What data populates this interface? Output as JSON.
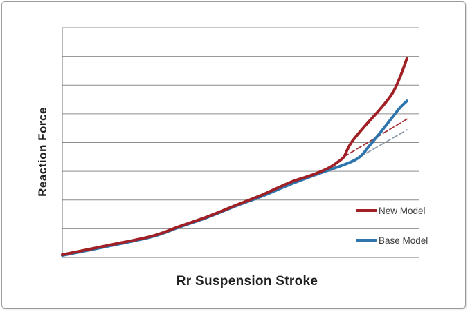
{
  "chart_data": {
    "type": "line",
    "title": "",
    "xlabel": "Rr Suspension Stroke",
    "ylabel": "Reaction Force",
    "axes": {
      "x_tick_labels": "none visible",
      "y_tick_labels": "none visible",
      "y_gridlines": 9,
      "y_gridline_intervals": 8,
      "grid": true,
      "note": "axes are unlabeled; series points given as normalized plot fractions x:0-1 left-to-right, y:0-1 bottom-to-top"
    },
    "legend": {
      "position": "inside-right",
      "entries": [
        "New Model",
        "Base Model"
      ]
    },
    "series": [
      {
        "name": "Base Model extrapolation",
        "style": "dashed",
        "color": "#8d9cac",
        "width": 1.8,
        "points": [
          [
            0.835,
            0.438
          ],
          [
            0.967,
            0.555
          ]
        ]
      },
      {
        "name": "New Model extrapolation",
        "style": "dashed",
        "color": "#a43338",
        "width": 1.8,
        "points": [
          [
            0.79,
            0.438
          ],
          [
            0.971,
            0.606
          ]
        ]
      },
      {
        "name": "Base Model",
        "style": "solid",
        "color": "#2e74ad",
        "width": 4,
        "points": [
          [
            0.0,
            0.009
          ],
          [
            0.126,
            0.048
          ],
          [
            0.252,
            0.09
          ],
          [
            0.33,
            0.133
          ],
          [
            0.408,
            0.175
          ],
          [
            0.485,
            0.223
          ],
          [
            0.563,
            0.268
          ],
          [
            0.641,
            0.319
          ],
          [
            0.718,
            0.364
          ],
          [
            0.796,
            0.407
          ],
          [
            0.835,
            0.438
          ],
          [
            0.864,
            0.491
          ],
          [
            0.893,
            0.545
          ],
          [
            0.922,
            0.602
          ],
          [
            0.947,
            0.651
          ],
          [
            0.967,
            0.681
          ]
        ]
      },
      {
        "name": "New Model",
        "style": "solid",
        "color": "#a02025",
        "width": 4,
        "points": [
          [
            0.0,
            0.012
          ],
          [
            0.126,
            0.052
          ],
          [
            0.252,
            0.093
          ],
          [
            0.33,
            0.136
          ],
          [
            0.408,
            0.178
          ],
          [
            0.485,
            0.226
          ],
          [
            0.563,
            0.274
          ],
          [
            0.641,
            0.328
          ],
          [
            0.699,
            0.358
          ],
          [
            0.748,
            0.39
          ],
          [
            0.777,
            0.42
          ],
          [
            0.79,
            0.438
          ],
          [
            0.8,
            0.47
          ],
          [
            0.812,
            0.503
          ],
          [
            0.849,
            0.572
          ],
          [
            0.893,
            0.648
          ],
          [
            0.926,
            0.714
          ],
          [
            0.947,
            0.783
          ],
          [
            0.967,
            0.867
          ]
        ]
      }
    ]
  },
  "colors": {
    "gridline": "#8c8c8c",
    "axis": "#707070",
    "frame_border": "#9b9b9b",
    "background": "#ffffff",
    "title_text": "#1f1f1f",
    "legend_text": "#3f3f3f"
  }
}
